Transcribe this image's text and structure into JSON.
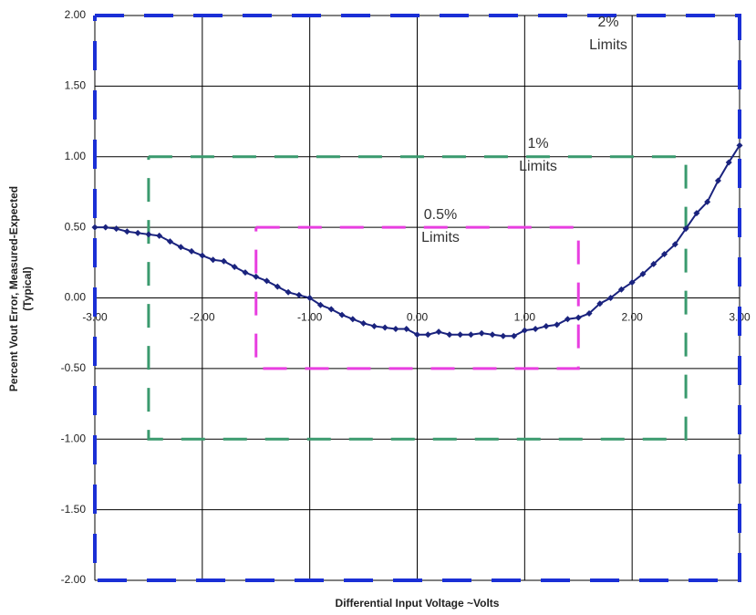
{
  "chart_data": {
    "type": "line",
    "xlabel": "Differential Input Voltage ~Volts",
    "ylabel": [
      "Percent Vout Error, Measured-Expected",
      "(Typical)"
    ],
    "xlim": [
      -3,
      3
    ],
    "ylim": [
      -2,
      2
    ],
    "xticks": [
      {
        "value": -3,
        "label": "-3.00"
      },
      {
        "value": -2,
        "label": "-2.00"
      },
      {
        "value": -1,
        "label": "-1.00"
      },
      {
        "value": 0,
        "label": "0.00"
      },
      {
        "value": 1,
        "label": "1.00"
      },
      {
        "value": 2,
        "label": "2.00"
      },
      {
        "value": 3,
        "label": "3.00"
      }
    ],
    "yticks": [
      {
        "value": 2,
        "label": "2.00"
      },
      {
        "value": 1.5,
        "label": "1.50"
      },
      {
        "value": 1,
        "label": "1.00"
      },
      {
        "value": 0.5,
        "label": "0.50"
      },
      {
        "value": 0,
        "label": "0.00"
      },
      {
        "value": -0.5,
        "label": "-0.50"
      },
      {
        "value": -1,
        "label": "-1.00"
      },
      {
        "value": -1.5,
        "label": "-1.50"
      },
      {
        "value": -2,
        "label": "-2.00"
      }
    ],
    "grid": true,
    "series": [
      {
        "color": "#1a237e",
        "x": [
          -3,
          -2.9,
          -2.8,
          -2.7,
          -2.6,
          -2.5,
          -2.4,
          -2.3,
          -2.2,
          -2.1,
          -2,
          -1.9,
          -1.8,
          -1.7,
          -1.6,
          -1.5,
          -1.4,
          -1.3,
          -1.2,
          -1.1,
          -1,
          -0.9,
          -0.8,
          -0.7,
          -0.6,
          -0.5,
          -0.4,
          -0.3,
          -0.2,
          -0.1,
          0,
          0.1,
          0.2,
          0.3,
          0.4,
          0.5,
          0.6,
          0.7,
          0.8,
          0.9,
          1,
          1.1,
          1.2,
          1.3,
          1.4,
          1.5,
          1.6,
          1.7,
          1.8,
          1.9,
          2,
          2.1,
          2.2,
          2.3,
          2.4,
          2.5,
          2.6,
          2.7,
          2.8,
          2.9,
          3
        ],
        "values": [
          0.5,
          0.5,
          0.49,
          0.47,
          0.46,
          0.45,
          0.44,
          0.4,
          0.36,
          0.33,
          0.3,
          0.27,
          0.26,
          0.22,
          0.18,
          0.15,
          0.12,
          0.08,
          0.04,
          0.02,
          0,
          -0.05,
          -0.08,
          -0.12,
          -0.15,
          -0.18,
          -0.2,
          -0.21,
          -0.22,
          -0.22,
          -0.26,
          -0.26,
          -0.24,
          -0.26,
          -0.26,
          -0.26,
          -0.25,
          -0.26,
          -0.27,
          -0.27,
          -0.23,
          -0.22,
          -0.2,
          -0.19,
          -0.15,
          -0.14,
          -0.11,
          -0.04,
          0,
          0.06,
          0.11,
          0.17,
          0.24,
          0.31,
          0.38,
          0.49,
          0.6,
          0.68,
          0.83,
          0.96,
          1.08
        ]
      }
    ],
    "limits": [
      {
        "label": [
          "2%",
          "Limits"
        ],
        "color": "#1a2fd6",
        "x": [
          -3,
          3,
          3,
          -3,
          -3
        ],
        "values": [
          2,
          2,
          -2,
          -2,
          2
        ]
      },
      {
        "label": [
          "1%",
          "Limits"
        ],
        "color": "#3a9a6e",
        "x": [
          -2.5,
          2.5,
          2.5,
          -2.5,
          -2.5
        ],
        "values": [
          1,
          1,
          -1,
          -1,
          1
        ]
      },
      {
        "label": [
          "0.5%",
          "Limits"
        ],
        "color": "#e83ee0",
        "x": [
          -1.5,
          1.5,
          1.5,
          -1.5,
          -1.5
        ],
        "values": [
          0.5,
          0.5,
          -0.5,
          -0.5,
          0.5
        ]
      }
    ]
  }
}
